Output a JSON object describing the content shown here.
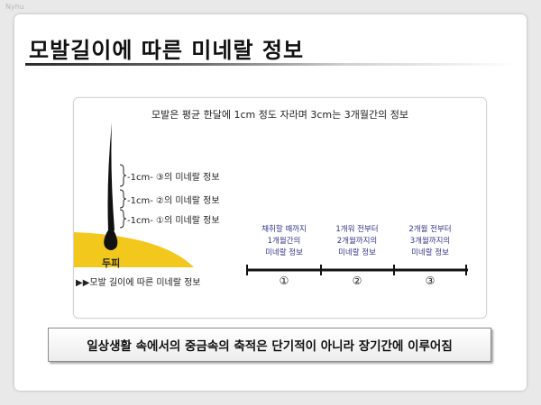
{
  "watermark": "Nyhu",
  "title": "모발길이에 따른 미네랄 정보",
  "panel": {
    "header": "모발은 평균 한달에 1cm 정도 자라며 3cm는 3개월간의 정보",
    "hair_labels": [
      "-1cm- ③의 미네랄 정보",
      "-1cm- ②의 미네랄 정보",
      "-1cm- ①의 미네랄 정보"
    ],
    "scalp_label": "두피",
    "caption": "▶▶모발 길이에 따른 미네랄 정보",
    "timeline": [
      {
        "lines": [
          "채취할 때까지",
          "1개월간의",
          "미네랄 정보"
        ],
        "num": "①"
      },
      {
        "lines": [
          "1개워 전부터",
          "2개월까지의",
          "미네랄 정보"
        ],
        "num": "②"
      },
      {
        "lines": [
          "2개월 전부터",
          "3개월까지의",
          "미네랄 정보"
        ],
        "num": "③"
      }
    ]
  },
  "summary": "일상생활 속에서의 중금속의 축적은 단기적이 아니라 장기간에 이루어짐",
  "colors": {
    "scalp": "#f2c81d",
    "hair": "#111111",
    "timeline_text": "#34358a"
  }
}
